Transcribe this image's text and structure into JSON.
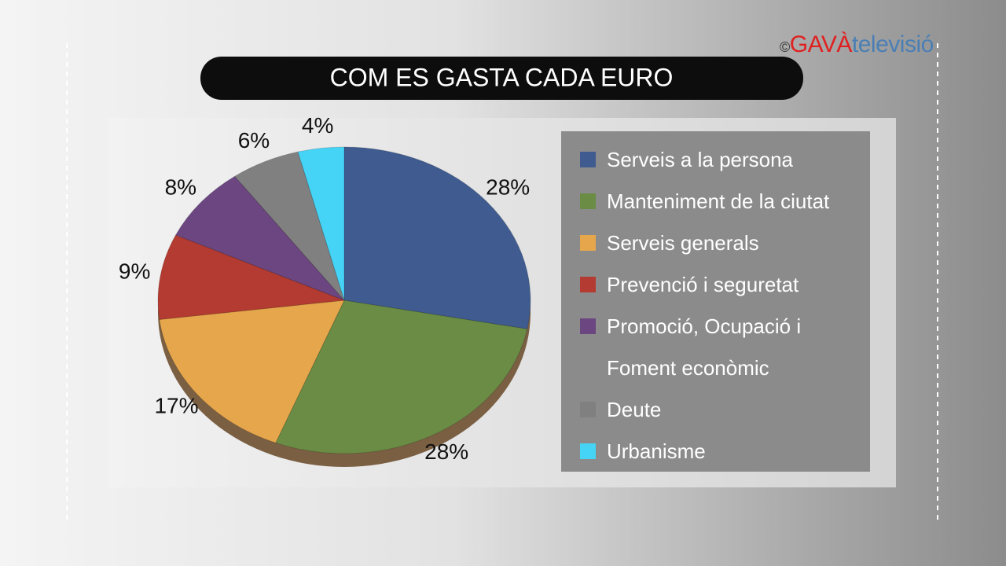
{
  "watermark": {
    "copyright": "©",
    "brand": "GAVÀ",
    "suffix": "televisió"
  },
  "chart_data": {
    "type": "pie",
    "title": "COM ES GASTA CADA EURO",
    "categories": [
      "Serveis a la persona",
      "Manteniment de la ciutat",
      "Serveis generals",
      "Prevenció i seguretat",
      "Promoció, Ocupació i Foment econòmic",
      "Deute",
      "Urbanisme"
    ],
    "values": [
      28,
      28,
      17,
      9,
      8,
      6,
      4
    ],
    "value_labels": [
      "28%",
      "28%",
      "17%",
      "9%",
      "8%",
      "6%",
      "4%"
    ],
    "colors": [
      "#3f5b8f",
      "#6a8c45",
      "#e6a74c",
      "#b33b31",
      "#6b4681",
      "#808080",
      "#45d3f6"
    ],
    "legend": "right"
  }
}
